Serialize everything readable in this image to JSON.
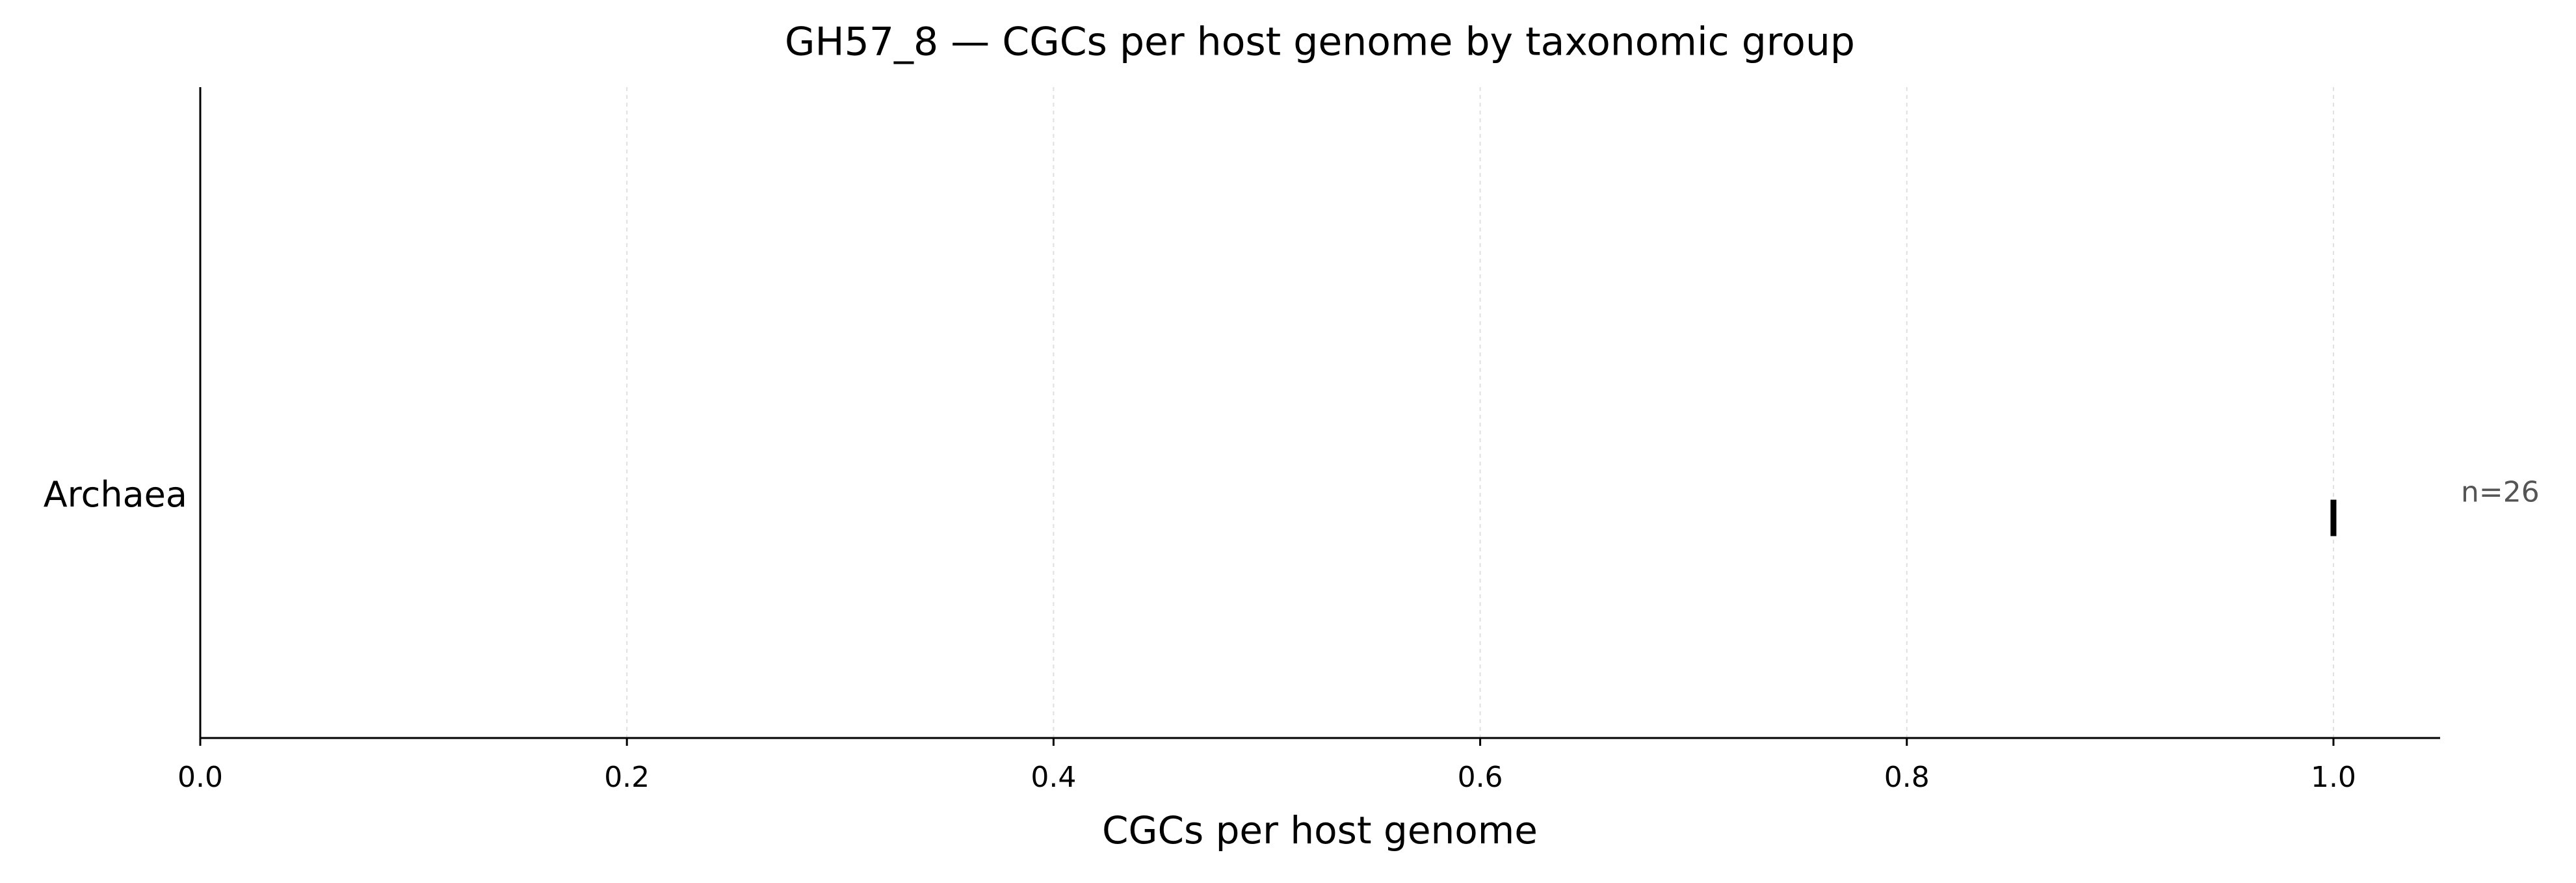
{
  "chart_data": {
    "type": "strip",
    "title": "GH57_8 — CGCs per host genome by taxonomic group",
    "x_label": "CGCs per host genome",
    "categories": [
      "Archaea"
    ],
    "values": [
      1.0
    ],
    "annotations": [
      "n=26"
    ],
    "color": "#000000",
    "xlim": [
      0,
      1.05
    ],
    "xticks": [
      {
        "value": 0,
        "label": "0.0"
      },
      {
        "value": 0.2,
        "label": "0.2"
      },
      {
        "value": 0.4,
        "label": "0.4"
      },
      {
        "value": 0.6,
        "label": "0.6"
      },
      {
        "value": 0.8,
        "label": "0.8"
      },
      {
        "value": 1.0,
        "label": "1.0"
      }
    ],
    "grid": true
  }
}
